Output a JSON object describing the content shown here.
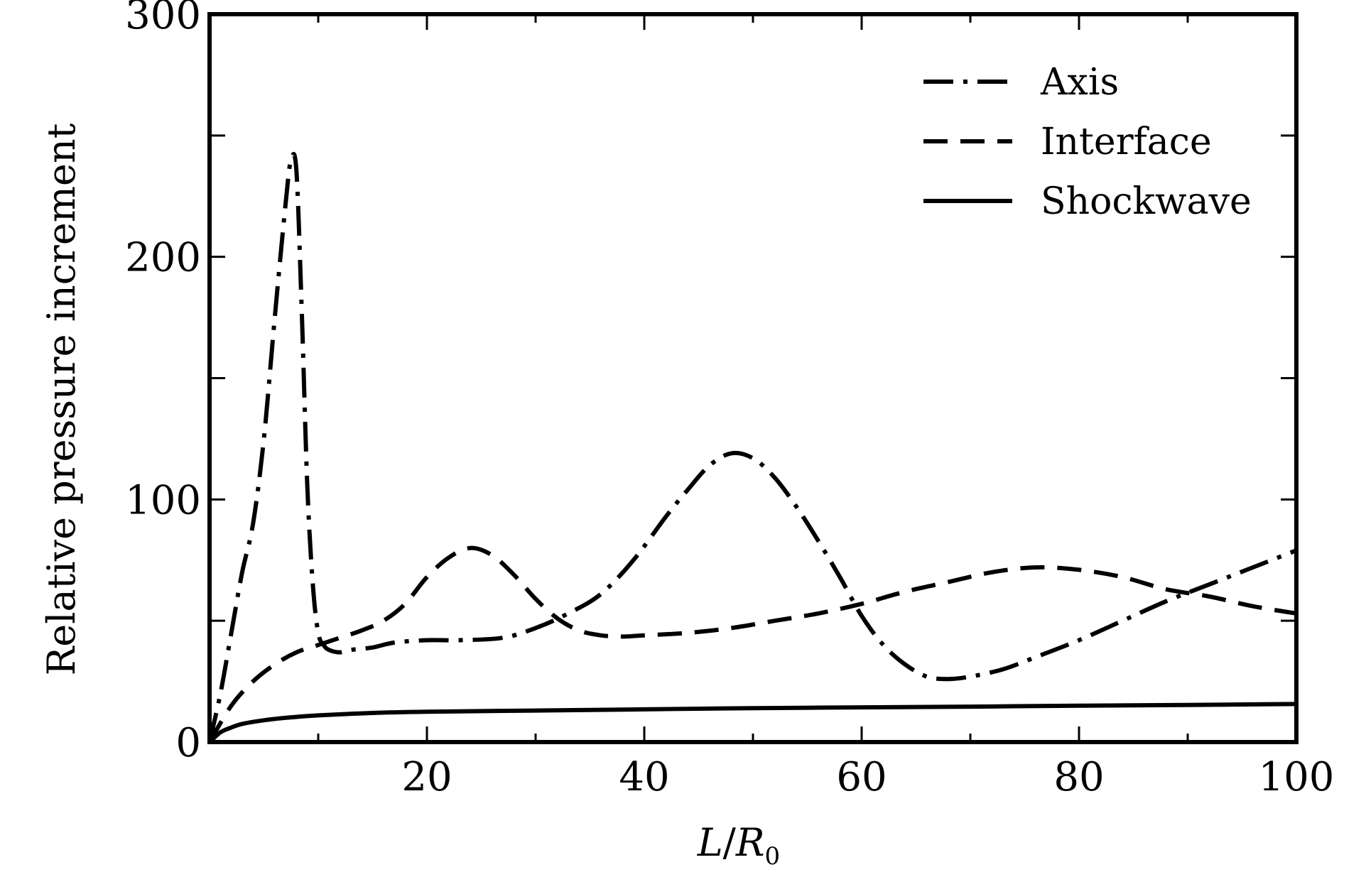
{
  "chart_data": {
    "type": "line",
    "title": "",
    "xlabel": {
      "main": "L",
      "sep": "/",
      "denom": "R",
      "sub": "0"
    },
    "ylabel": "Relative pressure increment",
    "xlim": [
      0,
      100
    ],
    "ylim": [
      0,
      300
    ],
    "xticks": [
      20,
      40,
      60,
      80,
      100
    ],
    "xtick_labels": [
      "20",
      "40",
      "60",
      "80",
      "100"
    ],
    "xminor": [
      10,
      30,
      50,
      70,
      90
    ],
    "yticks": [
      0,
      100,
      200,
      300
    ],
    "ytick_labels": [
      "0",
      "100",
      "200",
      "300"
    ],
    "yminor": [
      50,
      150,
      250
    ],
    "grid": false,
    "legend_position": "top-right",
    "series": [
      {
        "name": "Axis",
        "style": "dashdot",
        "x": [
          0,
          1,
          2,
          3,
          4,
          5,
          6,
          7,
          7.5,
          8,
          8.5,
          9,
          9.5,
          10,
          10.5,
          11,
          12,
          13,
          15,
          17,
          20,
          23,
          27,
          30,
          33,
          36,
          39,
          42,
          44,
          46,
          48,
          50,
          52,
          54,
          56,
          58,
          60,
          62,
          64,
          66,
          68,
          70,
          73,
          76,
          80,
          84,
          88,
          92,
          96,
          100
        ],
        "y": [
          0,
          20,
          45,
          70,
          90,
          125,
          175,
          222,
          240,
          235,
          175,
          105,
          65,
          45,
          40,
          38,
          37,
          38,
          39,
          41,
          42,
          42,
          43,
          47,
          53,
          61,
          75,
          93,
          104,
          114,
          119,
          117,
          109,
          97,
          83,
          68,
          52,
          40,
          32,
          27,
          26,
          27,
          30,
          35,
          42,
          50,
          58,
          65,
          72,
          79
        ]
      },
      {
        "name": "Interface",
        "style": "dashed",
        "x": [
          0,
          2,
          4,
          6,
          8,
          10,
          12,
          14,
          16,
          18,
          20,
          22,
          24,
          26,
          28,
          30,
          32,
          34,
          36,
          38,
          40,
          44,
          48,
          52,
          56,
          60,
          64,
          68,
          72,
          76,
          80,
          84,
          88,
          92,
          96,
          100
        ],
        "y": [
          0,
          15,
          25,
          32,
          37,
          40,
          43,
          46,
          50,
          57,
          68,
          76,
          80,
          77,
          69,
          59,
          51,
          46,
          44,
          43.5,
          44,
          45,
          47,
          50,
          53,
          57,
          62,
          66,
          70,
          72,
          71,
          68,
          63,
          60,
          56,
          53
        ]
      },
      {
        "name": "Shockwave",
        "style": "solid",
        "x": [
          0,
          1,
          2,
          3,
          5,
          7,
          10,
          15,
          20,
          30,
          40,
          50,
          60,
          70,
          80,
          90,
          100
        ],
        "y": [
          0,
          4,
          6,
          7.5,
          9,
          10,
          11,
          12,
          12.5,
          13,
          13.5,
          14,
          14.3,
          14.6,
          15,
          15.3,
          15.7
        ]
      }
    ]
  }
}
